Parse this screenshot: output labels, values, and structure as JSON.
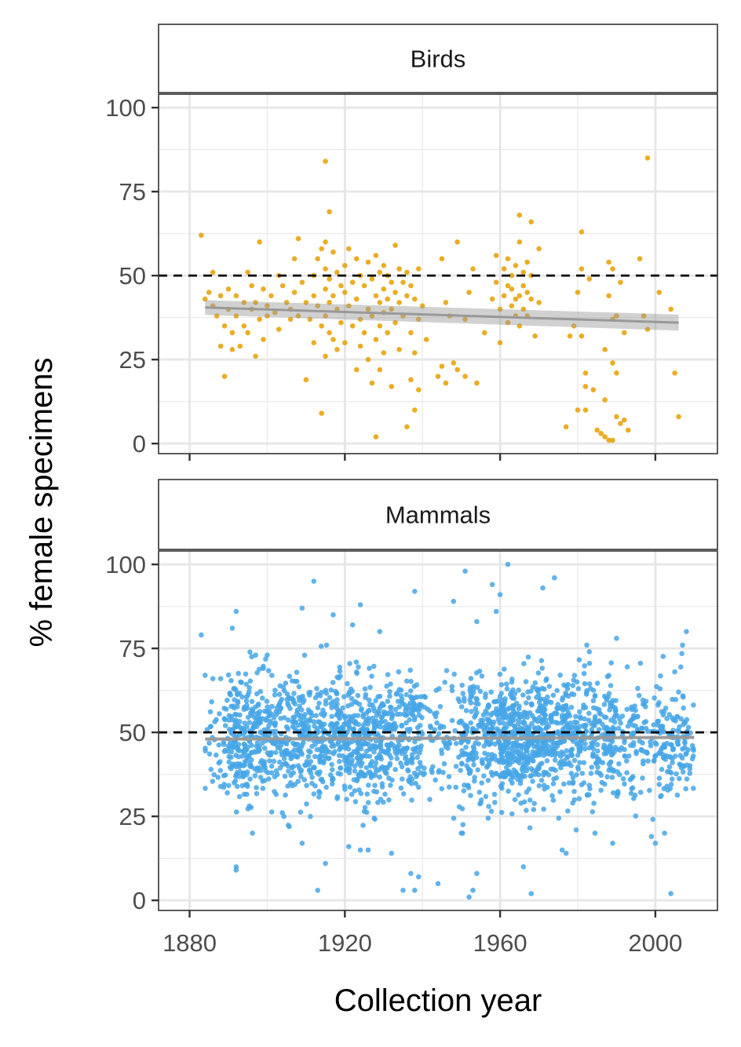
{
  "figure": {
    "ylabel": "% female specimens",
    "xlabel": "Collection year"
  },
  "chart_data": {
    "type": "scatter",
    "facet_layout": "stacked vertically, shared x axis",
    "x_range": [
      1872,
      2016
    ],
    "y_range": [
      -3,
      104
    ],
    "x_ticks": [
      1880,
      1920,
      1960,
      2000
    ],
    "x_tick_labels": [
      "1880",
      "1920",
      "1960",
      "2000"
    ],
    "y_ticks": [
      0,
      25,
      50,
      75,
      100
    ],
    "y_tick_labels": [
      "0",
      "25",
      "50",
      "75",
      "100"
    ],
    "reference_line": {
      "y": 50,
      "style": "dashed",
      "color": "#000000"
    },
    "grid": true,
    "panels": [
      {
        "strip_label": "Birds",
        "color": "#E69F00",
        "trend": {
          "x": [
            1884,
            2006
          ],
          "y": [
            40.5,
            36.0
          ],
          "ci_halfwidth": [
            2.2,
            2.4
          ],
          "color": "#999999"
        },
        "points": [
          [
            1883,
            62
          ],
          [
            1884,
            43
          ],
          [
            1885,
            45
          ],
          [
            1886,
            51
          ],
          [
            1886,
            41
          ],
          [
            1887,
            38
          ],
          [
            1888,
            44
          ],
          [
            1888,
            29
          ],
          [
            1889,
            20
          ],
          [
            1889,
            35
          ],
          [
            1890,
            46
          ],
          [
            1890,
            40
          ],
          [
            1891,
            28
          ],
          [
            1891,
            33
          ],
          [
            1892,
            44
          ],
          [
            1892,
            38
          ],
          [
            1893,
            29
          ],
          [
            1894,
            42
          ],
          [
            1894,
            35
          ],
          [
            1895,
            51
          ],
          [
            1895,
            33
          ],
          [
            1896,
            47
          ],
          [
            1896,
            40
          ],
          [
            1897,
            26
          ],
          [
            1897,
            42
          ],
          [
            1898,
            60
          ],
          [
            1898,
            37
          ],
          [
            1899,
            31
          ],
          [
            1899,
            46
          ],
          [
            1900,
            41
          ],
          [
            1900,
            38
          ],
          [
            1901,
            44
          ],
          [
            1902,
            39
          ],
          [
            1903,
            50
          ],
          [
            1903,
            34
          ],
          [
            1904,
            47
          ],
          [
            1905,
            42
          ],
          [
            1906,
            40
          ],
          [
            1906,
            37
          ],
          [
            1907,
            55
          ],
          [
            1907,
            45
          ],
          [
            1908,
            61
          ],
          [
            1908,
            38
          ],
          [
            1909,
            48
          ],
          [
            1910,
            19
          ],
          [
            1910,
            42
          ],
          [
            1911,
            37
          ],
          [
            1912,
            50
          ],
          [
            1912,
            44
          ],
          [
            1912,
            30
          ],
          [
            1913,
            55
          ],
          [
            1913,
            41
          ],
          [
            1914,
            58
          ],
          [
            1914,
            35
          ],
          [
            1914,
            9
          ],
          [
            1915,
            84
          ],
          [
            1915,
            60
          ],
          [
            1915,
            52
          ],
          [
            1915,
            46
          ],
          [
            1915,
            38
          ],
          [
            1915,
            26
          ],
          [
            1916,
            69
          ],
          [
            1916,
            49
          ],
          [
            1916,
            42
          ],
          [
            1916,
            33
          ],
          [
            1917,
            57
          ],
          [
            1917,
            44
          ],
          [
            1917,
            31
          ],
          [
            1918,
            51
          ],
          [
            1918,
            40
          ],
          [
            1918,
            28
          ],
          [
            1919,
            47
          ],
          [
            1919,
            36
          ],
          [
            1920,
            53
          ],
          [
            1920,
            45
          ],
          [
            1920,
            30
          ],
          [
            1921,
            58
          ],
          [
            1921,
            41
          ],
          [
            1922,
            48
          ],
          [
            1922,
            35
          ],
          [
            1923,
            55
          ],
          [
            1923,
            43
          ],
          [
            1923,
            22
          ],
          [
            1924,
            50
          ],
          [
            1924,
            37
          ],
          [
            1924,
            29
          ],
          [
            1925,
            47
          ],
          [
            1925,
            33
          ],
          [
            1926,
            54
          ],
          [
            1926,
            40
          ],
          [
            1926,
            25
          ],
          [
            1927,
            49
          ],
          [
            1927,
            38
          ],
          [
            1927,
            18
          ],
          [
            1928,
            56
          ],
          [
            1928,
            44
          ],
          [
            1928,
            31
          ],
          [
            1928,
            2
          ],
          [
            1929,
            51
          ],
          [
            1929,
            42
          ],
          [
            1929,
            35
          ],
          [
            1929,
            22
          ],
          [
            1930,
            53
          ],
          [
            1930,
            46
          ],
          [
            1930,
            39
          ],
          [
            1930,
            27
          ],
          [
            1931,
            50
          ],
          [
            1931,
            43
          ],
          [
            1931,
            33
          ],
          [
            1932,
            48
          ],
          [
            1932,
            40
          ],
          [
            1932,
            17
          ],
          [
            1933,
            59
          ],
          [
            1933,
            45
          ],
          [
            1933,
            36
          ],
          [
            1934,
            52
          ],
          [
            1934,
            42
          ],
          [
            1934,
            28
          ],
          [
            1935,
            48
          ],
          [
            1935,
            38
          ],
          [
            1936,
            51
          ],
          [
            1936,
            44
          ],
          [
            1936,
            5
          ],
          [
            1937,
            47
          ],
          [
            1937,
            33
          ],
          [
            1937,
            19
          ],
          [
            1938,
            43
          ],
          [
            1938,
            27
          ],
          [
            1938,
            10
          ],
          [
            1939,
            52
          ],
          [
            1939,
            37
          ],
          [
            1939,
            16
          ],
          [
            1940,
            41
          ],
          [
            1941,
            31
          ],
          [
            1944,
            20
          ],
          [
            1945,
            55
          ],
          [
            1945,
            23
          ],
          [
            1946,
            18
          ],
          [
            1946,
            42
          ],
          [
            1947,
            38
          ],
          [
            1948,
            24
          ],
          [
            1949,
            60
          ],
          [
            1949,
            22
          ],
          [
            1951,
            37
          ],
          [
            1951,
            20
          ],
          [
            1952,
            45
          ],
          [
            1953,
            52
          ],
          [
            1954,
            18
          ],
          [
            1956,
            33
          ],
          [
            1958,
            43
          ],
          [
            1959,
            48
          ],
          [
            1959,
            56
          ],
          [
            1960,
            30
          ],
          [
            1960,
            40
          ],
          [
            1961,
            44
          ],
          [
            1961,
            52
          ],
          [
            1962,
            47
          ],
          [
            1962,
            55
          ],
          [
            1962,
            36
          ],
          [
            1963,
            41
          ],
          [
            1963,
            50
          ],
          [
            1963,
            46
          ],
          [
            1964,
            53
          ],
          [
            1964,
            43
          ],
          [
            1964,
            38
          ],
          [
            1965,
            60
          ],
          [
            1965,
            68
          ],
          [
            1965,
            44
          ],
          [
            1965,
            35
          ],
          [
            1966,
            51
          ],
          [
            1966,
            47
          ],
          [
            1966,
            40
          ],
          [
            1967,
            54
          ],
          [
            1967,
            45
          ],
          [
            1967,
            38
          ],
          [
            1968,
            50
          ],
          [
            1968,
            43
          ],
          [
            1968,
            66
          ],
          [
            1969,
            32
          ],
          [
            1970,
            58
          ],
          [
            1970,
            42
          ],
          [
            1977,
            5
          ],
          [
            1978,
            32
          ],
          [
            1979,
            35
          ],
          [
            1980,
            10
          ],
          [
            1980,
            45
          ],
          [
            1981,
            63
          ],
          [
            1981,
            52
          ],
          [
            1981,
            32
          ],
          [
            1982,
            21
          ],
          [
            1982,
            17
          ],
          [
            1982,
            10
          ],
          [
            1983,
            49
          ],
          [
            1984,
            16
          ],
          [
            1985,
            4
          ],
          [
            1986,
            3
          ],
          [
            1987,
            28
          ],
          [
            1987,
            13
          ],
          [
            1987,
            2
          ],
          [
            1988,
            54
          ],
          [
            1988,
            44
          ],
          [
            1988,
            1
          ],
          [
            1989,
            52
          ],
          [
            1989,
            37
          ],
          [
            1989,
            24
          ],
          [
            1989,
            1
          ],
          [
            1990,
            21
          ],
          [
            1990,
            38
          ],
          [
            1990,
            8
          ],
          [
            1991,
            48
          ],
          [
            1991,
            6
          ],
          [
            1992,
            33
          ],
          [
            1992,
            7
          ],
          [
            1993,
            4
          ],
          [
            1996,
            55
          ],
          [
            1997,
            38
          ],
          [
            1998,
            85
          ],
          [
            1998,
            34
          ],
          [
            2001,
            45
          ],
          [
            2004,
            40
          ],
          [
            2005,
            21
          ],
          [
            2006,
            8
          ]
        ]
      },
      {
        "strip_label": "Mammals",
        "color": "#47A6E6",
        "trend": {
          "x": [
            1884,
            2010
          ],
          "y": [
            48.0,
            48.5
          ],
          "ci_halfwidth": [
            0.6,
            0.6
          ],
          "color": "#999999"
        },
        "point_count_estimate": 2500,
        "density_profile": [
          {
            "x": [
              1884,
              1890
            ],
            "weight": 2
          },
          {
            "x": [
              1890,
              1896
            ],
            "weight": 8
          },
          {
            "x": [
              1896,
              1912
            ],
            "weight": 6
          },
          {
            "x": [
              1912,
              1930
            ],
            "weight": 7
          },
          {
            "x": [
              1930,
              1940
            ],
            "weight": 6
          },
          {
            "x": [
              1940,
              1950
            ],
            "weight": 2
          },
          {
            "x": [
              1950,
              1960
            ],
            "weight": 6
          },
          {
            "x": [
              1960,
              1972
            ],
            "weight": 10
          },
          {
            "x": [
              1972,
              1990
            ],
            "weight": 6
          },
          {
            "x": [
              1990,
              2000
            ],
            "weight": 3
          },
          {
            "x": [
              2000,
              2010
            ],
            "weight": 4
          }
        ],
        "center": 48,
        "spread_sd": 9,
        "outliers": [
          [
            1883,
            79
          ],
          [
            1884,
            67
          ],
          [
            1886,
            66
          ],
          [
            1888,
            66
          ],
          [
            1891,
            81
          ],
          [
            1892,
            86
          ],
          [
            1892,
            10
          ],
          [
            1892,
            9
          ],
          [
            1897,
            73
          ],
          [
            1900,
            73
          ],
          [
            1906,
            35
          ],
          [
            1909,
            87
          ],
          [
            1909,
            17
          ],
          [
            1912,
            95
          ],
          [
            1913,
            3
          ],
          [
            1915,
            11
          ],
          [
            1917,
            85
          ],
          [
            1921,
            16
          ],
          [
            1922,
            82
          ],
          [
            1924,
            88
          ],
          [
            1924,
            15
          ],
          [
            1926,
            15
          ],
          [
            1929,
            80
          ],
          [
            1932,
            14
          ],
          [
            1935,
            3
          ],
          [
            1937,
            8
          ],
          [
            1938,
            92
          ],
          [
            1938,
            3
          ],
          [
            1939,
            7
          ],
          [
            1944,
            5
          ],
          [
            1948,
            89
          ],
          [
            1950,
            20
          ],
          [
            1951,
            98
          ],
          [
            1952,
            1
          ],
          [
            1953,
            3
          ],
          [
            1954,
            8
          ],
          [
            1954,
            83
          ],
          [
            1958,
            94
          ],
          [
            1959,
            86
          ],
          [
            1960,
            91
          ],
          [
            1962,
            100
          ],
          [
            1966,
            10
          ],
          [
            1968,
            2
          ],
          [
            1971,
            93
          ],
          [
            1974,
            96
          ],
          [
            1976,
            15
          ],
          [
            1977,
            14
          ],
          [
            1983,
            74
          ],
          [
            1989,
            17
          ],
          [
            1990,
            78
          ],
          [
            1999,
            19
          ],
          [
            2000,
            17
          ],
          [
            2004,
            2
          ],
          [
            2005,
            68
          ],
          [
            2007,
            76
          ],
          [
            2008,
            80
          ]
        ]
      }
    ]
  }
}
